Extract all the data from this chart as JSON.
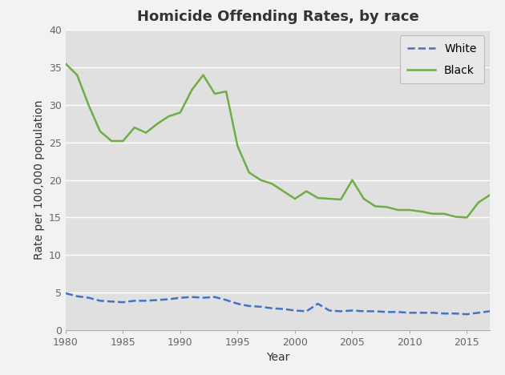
{
  "title": "Homicide Offending Rates, by race",
  "xlabel": "Year",
  "ylabel": "Rate per 100,000 population",
  "ylim": [
    0,
    40
  ],
  "yticks": [
    0,
    5,
    10,
    15,
    20,
    25,
    30,
    35,
    40
  ],
  "xlim": [
    1980,
    2017
  ],
  "xticks": [
    1980,
    1985,
    1990,
    1995,
    2000,
    2005,
    2010,
    2015
  ],
  "figure_background_color": "#f2f2f2",
  "plot_background_color": "#e0e0e0",
  "white_line": {
    "label": "White",
    "color": "#4472c4",
    "linestyle": "dashed",
    "linewidth": 1.8,
    "years": [
      1980,
      1981,
      1982,
      1983,
      1984,
      1985,
      1986,
      1987,
      1988,
      1989,
      1990,
      1991,
      1992,
      1993,
      1994,
      1995,
      1996,
      1997,
      1998,
      1999,
      2000,
      2001,
      2002,
      2003,
      2004,
      2005,
      2006,
      2007,
      2008,
      2009,
      2010,
      2011,
      2012,
      2013,
      2014,
      2015,
      2016,
      2017
    ],
    "values": [
      4.9,
      4.5,
      4.3,
      3.9,
      3.8,
      3.7,
      3.9,
      3.9,
      4.0,
      4.1,
      4.3,
      4.4,
      4.3,
      4.4,
      4.0,
      3.5,
      3.2,
      3.1,
      2.9,
      2.8,
      2.6,
      2.5,
      3.5,
      2.6,
      2.5,
      2.6,
      2.5,
      2.5,
      2.4,
      2.4,
      2.3,
      2.3,
      2.3,
      2.2,
      2.2,
      2.1,
      2.3,
      2.5
    ]
  },
  "black_line": {
    "label": "Black",
    "color": "#70ad47",
    "linestyle": "solid",
    "linewidth": 1.8,
    "years": [
      1980,
      1981,
      1982,
      1983,
      1984,
      1985,
      1986,
      1987,
      1988,
      1989,
      1990,
      1991,
      1992,
      1993,
      1994,
      1995,
      1996,
      1997,
      1998,
      1999,
      2000,
      2001,
      2002,
      2003,
      2004,
      2005,
      2006,
      2007,
      2008,
      2009,
      2010,
      2011,
      2012,
      2013,
      2014,
      2015,
      2016,
      2017
    ],
    "values": [
      35.5,
      34.0,
      30.0,
      26.5,
      25.2,
      25.2,
      27.0,
      26.3,
      27.5,
      28.5,
      29.0,
      32.0,
      34.0,
      31.5,
      31.8,
      24.5,
      21.0,
      20.0,
      19.5,
      18.5,
      17.5,
      18.5,
      17.6,
      17.5,
      17.4,
      20.0,
      17.5,
      16.5,
      16.4,
      16.0,
      16.0,
      15.8,
      15.5,
      15.5,
      15.1,
      15.0,
      17.0,
      18.0
    ]
  },
  "legend_facecolor": "#e8e8e8",
  "legend_edgecolor": "#bbbbbb",
  "grid_color": "#ffffff",
  "title_fontsize": 13,
  "axis_label_fontsize": 10,
  "tick_fontsize": 9,
  "legend_fontsize": 10,
  "tick_color": "#666666",
  "spine_color": "#aaaaaa"
}
